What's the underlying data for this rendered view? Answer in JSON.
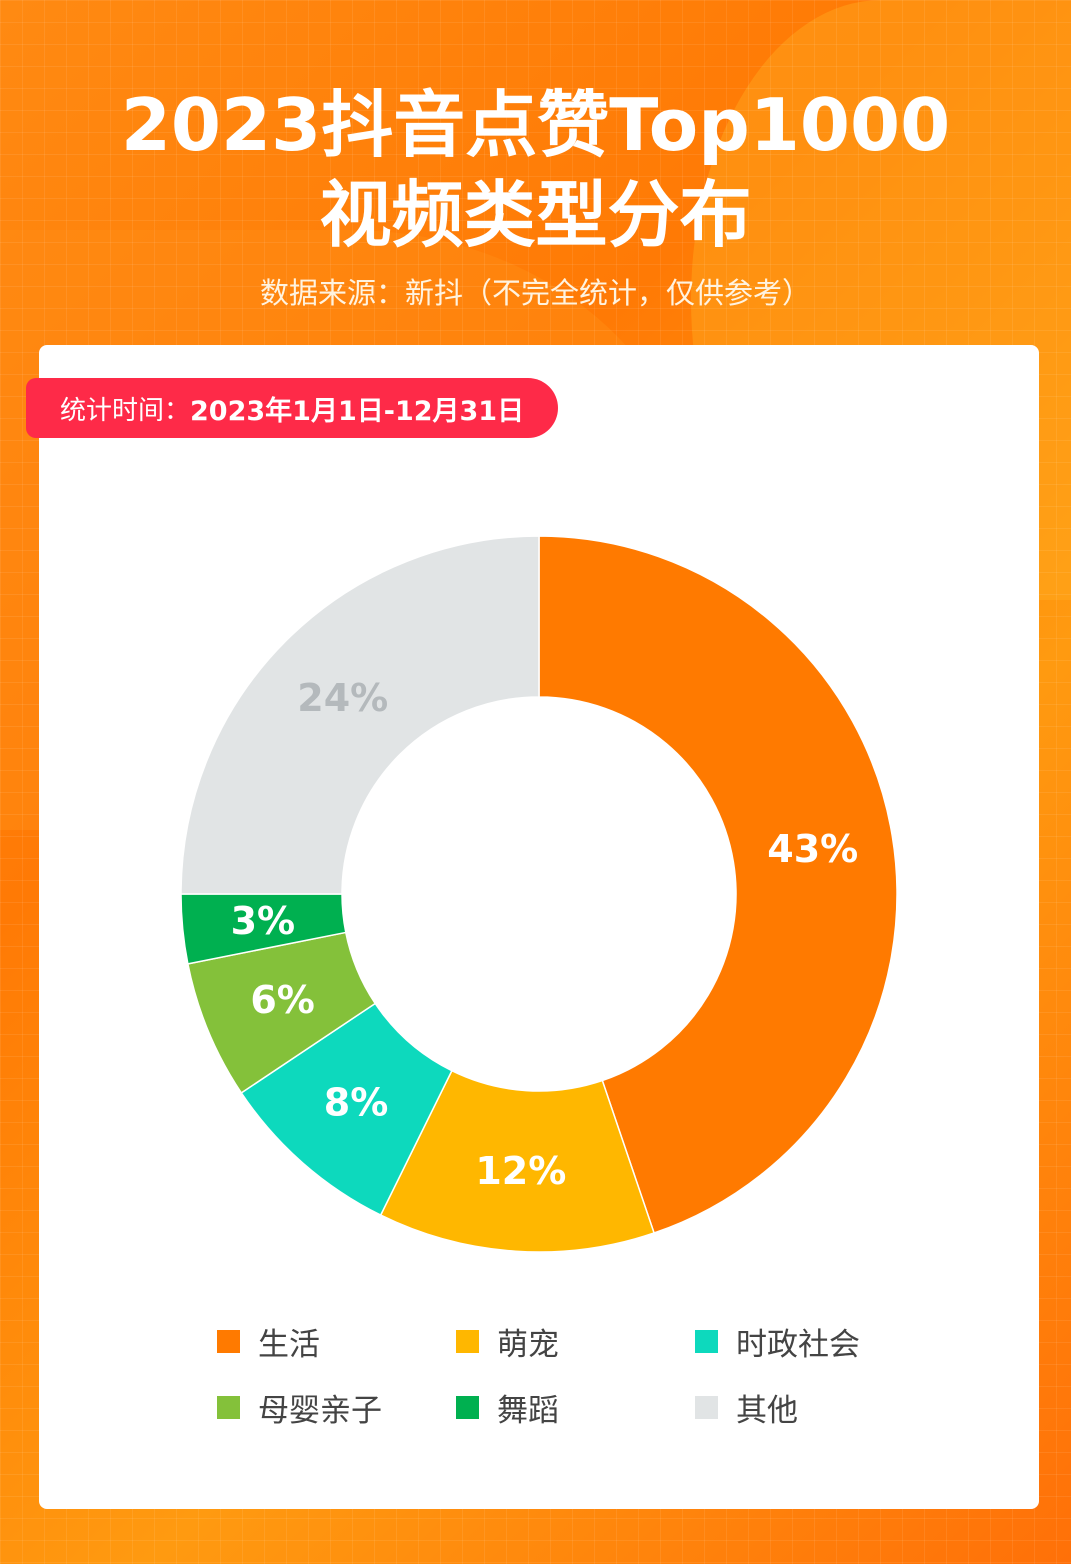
{
  "header": {
    "title_line1": "2023抖音点赞Top1000",
    "title_line2": "视频类型分布",
    "source": "数据来源：新抖（不完全统计，仅供参考）"
  },
  "badge": {
    "label": "统计时间：",
    "value": "2023年1月1日-12月31日"
  },
  "chart_data": {
    "type": "pie",
    "subtype": "donut",
    "categories": [
      "生活",
      "萌宠",
      "时政社会",
      "母婴亲子",
      "舞蹈",
      "其他"
    ],
    "values": [
      43,
      12,
      8,
      6,
      3,
      24
    ],
    "labels": [
      "43%",
      "12%",
      "8%",
      "6%",
      "3%",
      "24%"
    ],
    "colors": [
      "#ff7a00",
      "#ffb700",
      "#0dd9bd",
      "#84c13a",
      "#00b050",
      "#e1e4e5"
    ],
    "label_colors": [
      "#ffffff",
      "#ffffff",
      "#ffffff",
      "#ffffff",
      "#ffffff",
      "#b4b9bc"
    ],
    "legend_position": "bottom"
  }
}
